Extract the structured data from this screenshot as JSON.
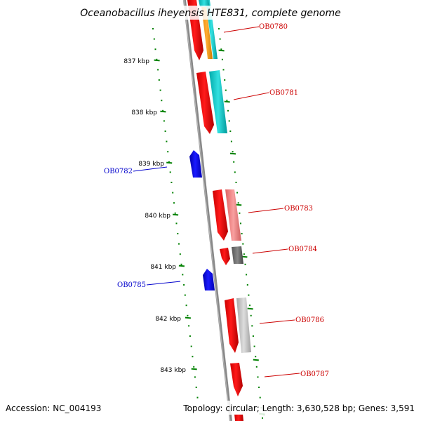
{
  "title": "Oceanobacillus iheyensis HTE831, complete genome",
  "footer": {
    "accession": "Accession: NC_004193",
    "summary": "Topology: circular; Length: 3,630,528 bp; Genes: 3,591"
  },
  "ruler_labels": [
    "837 kbp",
    "838 kbp",
    "839 kbp",
    "840 kbp",
    "841 kbp",
    "842 kbp",
    "843 kbp"
  ],
  "gene_labels": [
    "OB0780",
    "OB0781",
    "OB0782",
    "OB0783",
    "OB0784",
    "OB0785",
    "OB0786",
    "OB0787"
  ],
  "colors": {
    "forward": "#ff0000",
    "reverse": "#0000ff",
    "label_forward": "#cc0000",
    "label_reverse": "#0000cc",
    "ticks": "#008000",
    "backbone": "#888888",
    "cyan": "#00cccc",
    "orange": "#ff9900",
    "salmon": "#f08080",
    "dark_gray": "#666666",
    "light_gray": "#bbbbbb"
  }
}
